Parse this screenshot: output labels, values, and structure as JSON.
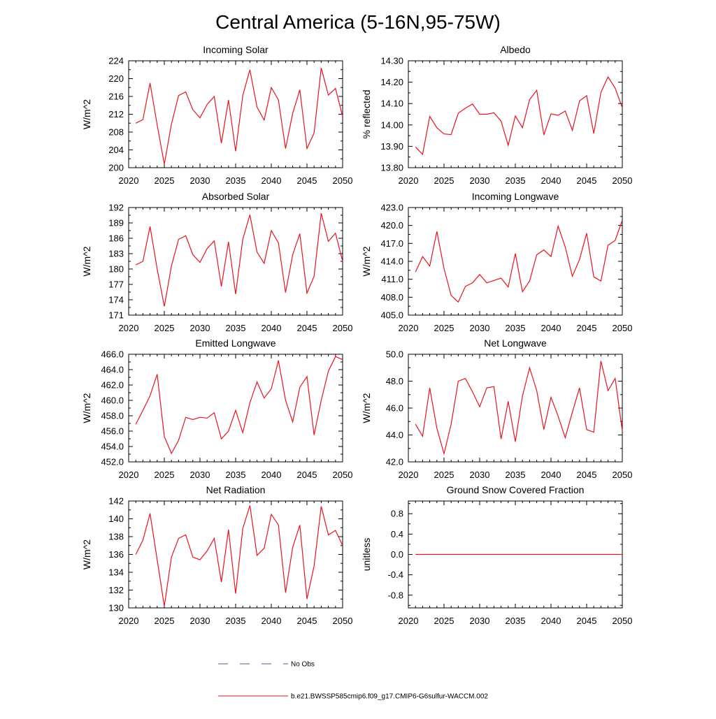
{
  "title": "Central America (5-16N,95-75W)",
  "colors": {
    "model_line": "#e8141e",
    "obs_line": "#4b5aa0",
    "axis": "#000000"
  },
  "legend": [
    {
      "label": "No Obs",
      "style": "dashed",
      "color": "#4b5aa0"
    },
    {
      "label": "b.e21.BWSSP585cmip6.f09_g17.CMIP6-G6sulfur-WACCM.002",
      "style": "solid",
      "color": "#e8141e"
    }
  ],
  "chart_data": [
    {
      "type": "line",
      "title": "Incoming Solar",
      "ylabel": "W/m^2",
      "xlim": [
        2020,
        2050
      ],
      "ylim": [
        200,
        224
      ],
      "xticks": [
        "2020",
        "2025",
        "2030",
        "2035",
        "2040",
        "2045",
        "2050"
      ],
      "yticks": [
        "200",
        "204",
        "208",
        "212",
        "216",
        "220",
        "224"
      ],
      "x": [
        2021,
        2022,
        2023,
        2024,
        2025,
        2026,
        2027,
        2028,
        2029,
        2030,
        2031,
        2032,
        2033,
        2034,
        2035,
        2036,
        2037,
        2038,
        2039,
        2040,
        2041,
        2042,
        2043,
        2044,
        2045,
        2046,
        2047,
        2048,
        2049,
        2050
      ],
      "series": [
        {
          "values": [
            210.0,
            210.8,
            219.0,
            209.6,
            200.8,
            209.8,
            216.2,
            217.0,
            213.0,
            211.2,
            214.2,
            216.0,
            205.5,
            215.2,
            203.7,
            216.2,
            222.0,
            213.6,
            210.7,
            218.0,
            215.2,
            204.3,
            212.2,
            217.5,
            204.3,
            207.8,
            222.4,
            216.3,
            217.8,
            211.5
          ]
        }
      ]
    },
    {
      "type": "line",
      "title": "Albedo",
      "ylabel": "% reflected",
      "xlim": [
        2020,
        2050
      ],
      "ylim": [
        13.8,
        14.3
      ],
      "xticks": [
        "2020",
        "2025",
        "2030",
        "2035",
        "2040",
        "2045",
        "2050"
      ],
      "yticks": [
        "13.80",
        "13.90",
        "14.00",
        "14.10",
        "14.20",
        "14.30"
      ],
      "x": [
        2021,
        2022,
        2023,
        2024,
        2025,
        2026,
        2027,
        2028,
        2029,
        2030,
        2031,
        2032,
        2033,
        2034,
        2035,
        2036,
        2037,
        2038,
        2039,
        2040,
        2041,
        2042,
        2043,
        2044,
        2045,
        2046,
        2047,
        2048,
        2049,
        2050
      ],
      "series": [
        {
          "values": [
            13.897,
            13.862,
            14.04,
            13.987,
            13.958,
            13.955,
            14.055,
            14.078,
            14.098,
            14.05,
            14.05,
            14.057,
            14.018,
            13.905,
            14.042,
            13.987,
            14.118,
            14.162,
            13.953,
            14.052,
            14.045,
            14.065,
            13.975,
            14.112,
            14.137,
            13.96,
            14.152,
            14.225,
            14.172,
            14.08
          ]
        }
      ]
    },
    {
      "type": "line",
      "title": "Absorbed Solar",
      "ylabel": "W/m^2",
      "xlim": [
        2020,
        2050
      ],
      "ylim": [
        171,
        192
      ],
      "xticks": [
        "2020",
        "2025",
        "2030",
        "2035",
        "2040",
        "2045",
        "2050"
      ],
      "yticks": [
        "171",
        "174",
        "177",
        "180",
        "183",
        "186",
        "189",
        "192"
      ],
      "x": [
        2021,
        2022,
        2023,
        2024,
        2025,
        2026,
        2027,
        2028,
        2029,
        2030,
        2031,
        2032,
        2033,
        2034,
        2035,
        2036,
        2037,
        2038,
        2039,
        2040,
        2041,
        2042,
        2043,
        2044,
        2045,
        2046,
        2047,
        2048,
        2049,
        2050
      ],
      "series": [
        {
          "values": [
            180.8,
            181.5,
            188.3,
            180.0,
            172.7,
            180.6,
            185.8,
            186.5,
            182.8,
            181.3,
            184.0,
            185.5,
            176.6,
            185.3,
            175.1,
            185.8,
            190.6,
            183.3,
            181.1,
            187.5,
            185.1,
            175.4,
            182.8,
            186.9,
            175.3,
            178.6,
            190.9,
            185.4,
            187.0,
            181.5
          ]
        }
      ]
    },
    {
      "type": "line",
      "title": "Incoming Longwave",
      "ylabel": "W/m^2",
      "xlim": [
        2020,
        2050
      ],
      "ylim": [
        405.0,
        423.0
      ],
      "xticks": [
        "2020",
        "2025",
        "2030",
        "2035",
        "2040",
        "2045",
        "2050"
      ],
      "yticks": [
        "405.0",
        "408.0",
        "411.0",
        "414.0",
        "417.0",
        "420.0",
        "423.0"
      ],
      "x": [
        2021,
        2022,
        2023,
        2024,
        2025,
        2026,
        2027,
        2028,
        2029,
        2030,
        2031,
        2032,
        2033,
        2034,
        2035,
        2036,
        2037,
        2038,
        2039,
        2040,
        2041,
        2042,
        2043,
        2044,
        2045,
        2046,
        2047,
        2048,
        2049,
        2050
      ],
      "series": [
        {
          "values": [
            412.2,
            414.8,
            413.2,
            419.0,
            412.8,
            408.3,
            407.2,
            409.8,
            410.4,
            411.8,
            410.4,
            410.8,
            411.2,
            409.7,
            415.3,
            408.9,
            410.7,
            415.1,
            415.9,
            414.8,
            419.9,
            416.4,
            411.5,
            414.3,
            418.7,
            411.4,
            410.7,
            416.7,
            417.5,
            420.9
          ]
        }
      ]
    },
    {
      "type": "line",
      "title": "Emitted Longwave",
      "ylabel": "W/m^2",
      "xlim": [
        2020,
        2050
      ],
      "ylim": [
        452.0,
        466.0
      ],
      "xticks": [
        "2020",
        "2025",
        "2030",
        "2035",
        "2040",
        "2045",
        "2050"
      ],
      "yticks": [
        "452.0",
        "454.0",
        "456.0",
        "458.0",
        "460.0",
        "462.0",
        "464.0",
        "466.0"
      ],
      "x": [
        2021,
        2022,
        2023,
        2024,
        2025,
        2026,
        2027,
        2028,
        2029,
        2030,
        2031,
        2032,
        2033,
        2034,
        2035,
        2036,
        2037,
        2038,
        2039,
        2040,
        2041,
        2042,
        2043,
        2044,
        2045,
        2046,
        2047,
        2048,
        2049,
        2050
      ],
      "series": [
        {
          "values": [
            456.9,
            458.7,
            460.6,
            463.4,
            455.3,
            453.1,
            454.8,
            457.8,
            457.5,
            457.8,
            457.7,
            458.4,
            455.0,
            456.0,
            458.7,
            455.8,
            459.7,
            462.4,
            460.3,
            461.5,
            465.2,
            460.0,
            457.2,
            461.7,
            463.1,
            455.5,
            460.0,
            463.8,
            465.7,
            465.3
          ]
        }
      ]
    },
    {
      "type": "line",
      "title": "Net Longwave",
      "ylabel": "W/m^2",
      "xlim": [
        2020,
        2050
      ],
      "ylim": [
        42.0,
        50.0
      ],
      "xticks": [
        "2020",
        "2025",
        "2030",
        "2035",
        "2040",
        "2045",
        "2050"
      ],
      "yticks": [
        "42.0",
        "44.0",
        "46.0",
        "48.0",
        "50.0"
      ],
      "x": [
        2021,
        2022,
        2023,
        2024,
        2025,
        2026,
        2027,
        2028,
        2029,
        2030,
        2031,
        2032,
        2033,
        2034,
        2035,
        2036,
        2037,
        2038,
        2039,
        2040,
        2041,
        2042,
        2043,
        2044,
        2045,
        2046,
        2047,
        2048,
        2049,
        2050
      ],
      "series": [
        {
          "values": [
            44.8,
            43.9,
            47.5,
            44.5,
            42.6,
            44.8,
            48.0,
            48.2,
            47.2,
            46.1,
            47.5,
            47.6,
            43.7,
            46.5,
            43.5,
            46.9,
            49.0,
            47.3,
            44.4,
            46.8,
            45.4,
            43.8,
            45.7,
            47.5,
            44.4,
            44.2,
            49.5,
            47.3,
            48.2,
            44.3
          ]
        }
      ]
    },
    {
      "type": "line",
      "title": "Net Radiation",
      "ylabel": "W/m^2",
      "xlim": [
        2020,
        2050
      ],
      "ylim": [
        130,
        142
      ],
      "xticks": [
        "2020",
        "2025",
        "2030",
        "2035",
        "2040",
        "2045",
        "2050"
      ],
      "yticks": [
        "130",
        "132",
        "134",
        "136",
        "138",
        "140",
        "142"
      ],
      "x": [
        2021,
        2022,
        2023,
        2024,
        2025,
        2026,
        2027,
        2028,
        2029,
        2030,
        2031,
        2032,
        2033,
        2034,
        2035,
        2036,
        2037,
        2038,
        2039,
        2040,
        2041,
        2042,
        2043,
        2044,
        2045,
        2046,
        2047,
        2048,
        2049,
        2050
      ],
      "series": [
        {
          "values": [
            136.0,
            137.6,
            140.6,
            135.4,
            130.2,
            135.7,
            137.8,
            138.2,
            135.7,
            135.4,
            136.4,
            137.8,
            132.9,
            138.8,
            131.6,
            138.9,
            141.5,
            135.9,
            136.7,
            140.5,
            139.3,
            131.7,
            136.8,
            139.3,
            131.0,
            134.7,
            141.4,
            138.2,
            138.7,
            137.0
          ]
        }
      ]
    },
    {
      "type": "line",
      "title": "Ground Snow Covered Fraction",
      "ylabel": "unitless",
      "xlim": [
        2020,
        2050
      ],
      "ylim": [
        -1.05,
        1.05
      ],
      "xticks": [
        "2020",
        "2025",
        "2030",
        "2035",
        "2040",
        "2045",
        "2050"
      ],
      "yticks": [
        "-0.8",
        "-0.4",
        "0.0",
        "0.4",
        "0.8"
      ],
      "x": [
        2021,
        2022,
        2023,
        2024,
        2025,
        2026,
        2027,
        2028,
        2029,
        2030,
        2031,
        2032,
        2033,
        2034,
        2035,
        2036,
        2037,
        2038,
        2039,
        2040,
        2041,
        2042,
        2043,
        2044,
        2045,
        2046,
        2047,
        2048,
        2049,
        2050
      ],
      "series": [
        {
          "values": [
            0,
            0,
            0,
            0,
            0,
            0,
            0,
            0,
            0,
            0,
            0,
            0,
            0,
            0,
            0,
            0,
            0,
            0,
            0,
            0,
            0,
            0,
            0,
            0,
            0,
            0,
            0,
            0,
            0,
            0
          ]
        }
      ]
    }
  ]
}
